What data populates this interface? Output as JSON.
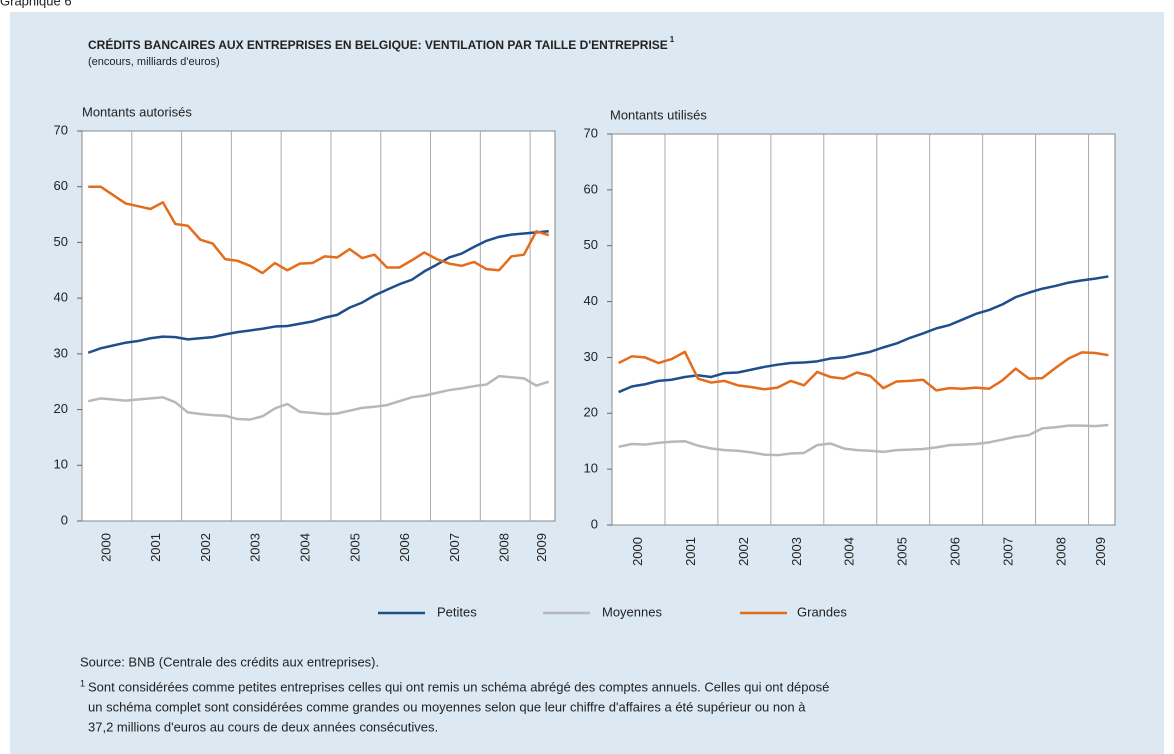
{
  "header": "Graphique 6",
  "title": "CRÉDITS BANCAIRES AUX ENTREPRISES EN BELGIQUE: VENTILATION PAR TAILLE D'ENTREPRISE",
  "title_note": "1",
  "subtitle": "(encours, milliards d'euros)",
  "source": "Source: BNB (Centrale des crédits aux entreprises).",
  "footnote_mark": "1",
  "footnote": [
    "Sont considérées comme petites entreprises celles qui ont remis un schéma abrégé des comptes annuels. Celles qui ont déposé",
    "un schéma complet sont considérées comme grandes ou moyennes selon que leur chiffre d'affaires a été supérieur ou non à",
    "37,2 millions d'euros au cours de deux années consécutives."
  ],
  "chart_data": [
    {
      "type": "line",
      "title": "Montants autorisés",
      "categories": [
        "2000",
        null,
        null,
        null,
        "2001",
        null,
        null,
        null,
        "2002",
        null,
        null,
        null,
        "2003",
        null,
        null,
        null,
        "2004",
        null,
        null,
        null,
        "2005",
        null,
        null,
        null,
        "2006",
        null,
        null,
        null,
        "2007",
        null,
        null,
        null,
        "2008",
        null,
        null,
        null,
        "2009",
        null
      ],
      "ylim": [
        0,
        70
      ],
      "yticks": [
        0,
        10,
        20,
        30,
        40,
        50,
        60,
        70
      ],
      "grid": false,
      "series": [
        {
          "name": "Petites",
          "color": "#1f4e8c",
          "values": [
            30.2,
            31,
            31.5,
            32,
            32.3,
            32.8,
            33.1,
            33,
            32.6,
            32.8,
            33,
            33.5,
            33.9,
            34.2,
            34.5,
            34.9,
            35,
            35.4,
            35.8,
            36.5,
            37,
            38.3,
            39.2,
            40.5,
            41.5,
            42.5,
            43.3,
            44.8,
            46,
            47.3,
            48,
            49.2,
            50.3,
            51,
            51.4,
            51.6,
            51.8,
            52
          ]
        },
        {
          "name": "Moyennes",
          "color": "#b8b8b8",
          "values": [
            21.5,
            22,
            21.8,
            21.6,
            21.8,
            22,
            22.2,
            21.3,
            19.5,
            19.2,
            19,
            18.9,
            18.3,
            18.2,
            18.8,
            20.2,
            21,
            19.6,
            19.4,
            19.2,
            19.3,
            19.8,
            20.3,
            20.5,
            20.8,
            21.5,
            22.2,
            22.5,
            23,
            23.5,
            23.8,
            24.2,
            24.5,
            26,
            25.8,
            25.6,
            24.3,
            25
          ]
        },
        {
          "name": "Grandes",
          "color": "#e46c1a",
          "values": [
            60,
            60,
            58.5,
            57,
            56.5,
            56,
            57.2,
            53.3,
            53,
            50.5,
            49.8,
            47,
            46.7,
            45.8,
            44.5,
            46.3,
            45,
            46.2,
            46.3,
            47.5,
            47.3,
            48.8,
            47.2,
            47.8,
            45.5,
            45.5,
            46.8,
            48.2,
            47,
            46.2,
            45.8,
            46.5,
            45.2,
            45,
            47.5,
            47.8,
            52,
            51.3
          ]
        }
      ]
    },
    {
      "type": "line",
      "title": "Montants utilisés",
      "categories": [
        "2000",
        null,
        null,
        null,
        "2001",
        null,
        null,
        null,
        "2002",
        null,
        null,
        null,
        "2003",
        null,
        null,
        null,
        "2004",
        null,
        null,
        null,
        "2005",
        null,
        null,
        null,
        "2006",
        null,
        null,
        null,
        "2007",
        null,
        null,
        null,
        "2008",
        null,
        null,
        null,
        "2009",
        null
      ],
      "ylim": [
        0,
        70
      ],
      "yticks": [
        0,
        10,
        20,
        30,
        40,
        50,
        60,
        70
      ],
      "grid": false,
      "series": [
        {
          "name": "Petites",
          "color": "#1f4e8c",
          "values": [
            23.8,
            24.8,
            25.2,
            25.8,
            26,
            26.5,
            26.8,
            26.5,
            27.2,
            27.3,
            27.8,
            28.3,
            28.7,
            29,
            29.1,
            29.3,
            29.8,
            30,
            30.5,
            31,
            31.8,
            32.5,
            33.5,
            34.3,
            35.2,
            35.8,
            36.8,
            37.8,
            38.5,
            39.5,
            40.8,
            41.6,
            42.3,
            42.8,
            43.4,
            43.8,
            44.1,
            44.5
          ]
        },
        {
          "name": "Moyennes",
          "color": "#b8b8b8",
          "values": [
            14,
            14.5,
            14.4,
            14.7,
            14.9,
            15,
            14.2,
            13.7,
            13.4,
            13.3,
            13,
            12.6,
            12.5,
            12.8,
            12.9,
            14.3,
            14.6,
            13.7,
            13.4,
            13.3,
            13.1,
            13.4,
            13.5,
            13.6,
            13.9,
            14.3,
            14.4,
            14.5,
            14.8,
            15.3,
            15.8,
            16.1,
            17.3,
            17.5,
            17.8,
            17.8,
            17.7,
            17.9
          ]
        },
        {
          "name": "Grandes",
          "color": "#e46c1a",
          "values": [
            29,
            30.2,
            30,
            29,
            29.7,
            31,
            26.2,
            25.5,
            25.8,
            25,
            24.7,
            24.3,
            24.6,
            25.8,
            25,
            27.4,
            26.5,
            26.2,
            27.3,
            26.7,
            24.5,
            25.7,
            25.8,
            26,
            24.1,
            24.5,
            24.4,
            24.6,
            24.4,
            25.9,
            28,
            26.2,
            26.3,
            28.1,
            29.8,
            30.9,
            30.8,
            30.4
          ]
        }
      ]
    }
  ]
}
